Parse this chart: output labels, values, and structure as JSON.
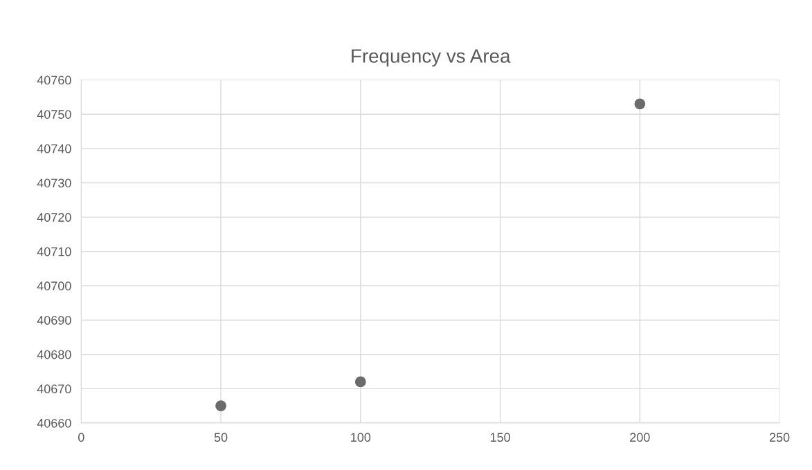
{
  "chart_data": {
    "type": "scatter",
    "title": "Frequency vs Area",
    "x": [
      50,
      100,
      200
    ],
    "series": [
      {
        "color": "#6b6b6b",
        "values": [
          40665,
          40672,
          40753
        ]
      }
    ],
    "xlim": [
      0,
      250
    ],
    "xticks": [
      0,
      50,
      100,
      150,
      200,
      250
    ],
    "ylim": [
      40660,
      40760
    ],
    "yticks": [
      40660,
      40670,
      40680,
      40690,
      40700,
      40710,
      40720,
      40730,
      40740,
      40750,
      40760
    ],
    "grid": true,
    "marker": "circle",
    "legend": false
  }
}
